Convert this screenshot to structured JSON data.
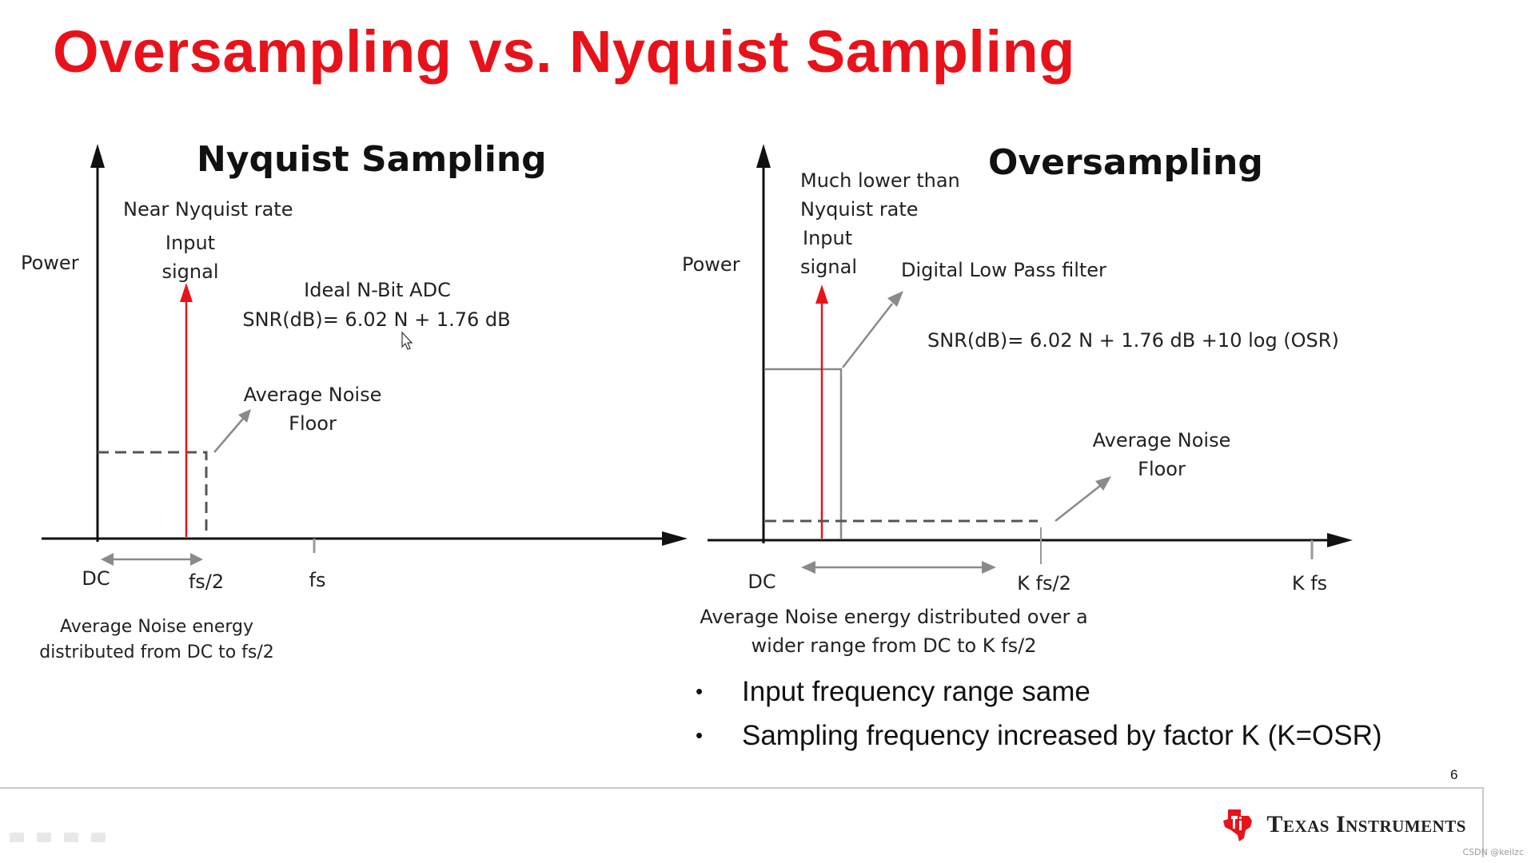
{
  "slide": {
    "title": "Oversampling vs. Nyquist Sampling",
    "page_number": "6",
    "watermark": "CSDN @keilzc"
  },
  "nyquist": {
    "heading": "Nyquist Sampling",
    "power_label": "Power",
    "rate_label": "Near Nyquist rate",
    "input_signal": [
      "Input",
      "signal"
    ],
    "adc_label": "Ideal N-Bit ADC",
    "snr": "SNR(dB)= 6.02 N + 1.76 dB",
    "noise_floor": [
      "Average Noise",
      "Floor"
    ],
    "x_ticks": [
      "DC",
      "fs/2",
      "fs"
    ],
    "caption": [
      "Average Noise energy",
      "distributed from DC to fs/2"
    ]
  },
  "oversampling": {
    "heading": "Oversampling",
    "power_label": "Power",
    "rate_label": [
      "Much lower than",
      "Nyquist rate"
    ],
    "input_signal": [
      "Input",
      "signal"
    ],
    "filter_label": "Digital Low Pass filter",
    "snr": "SNR(dB)= 6.02 N + 1.76 dB +10 log (OSR)",
    "noise_floor": [
      "Average Noise",
      "Floor"
    ],
    "x_ticks": [
      "DC",
      "K fs/2",
      "K fs"
    ],
    "caption": [
      "Average Noise energy distributed over a",
      "wider range from DC to K fs/2"
    ]
  },
  "bullets": [
    "Input frequency range same",
    "Sampling frequency increased by factor K (K=OSR)"
  ],
  "footer": {
    "brand": "Texas Instruments",
    "logo_icon": "texas-instruments-logo-icon"
  },
  "colors": {
    "title": "#e8121a",
    "signal": "#e8121a",
    "axis": "#111111",
    "noise_dash": "#555555",
    "arrow_gray": "#8a8a8a"
  }
}
